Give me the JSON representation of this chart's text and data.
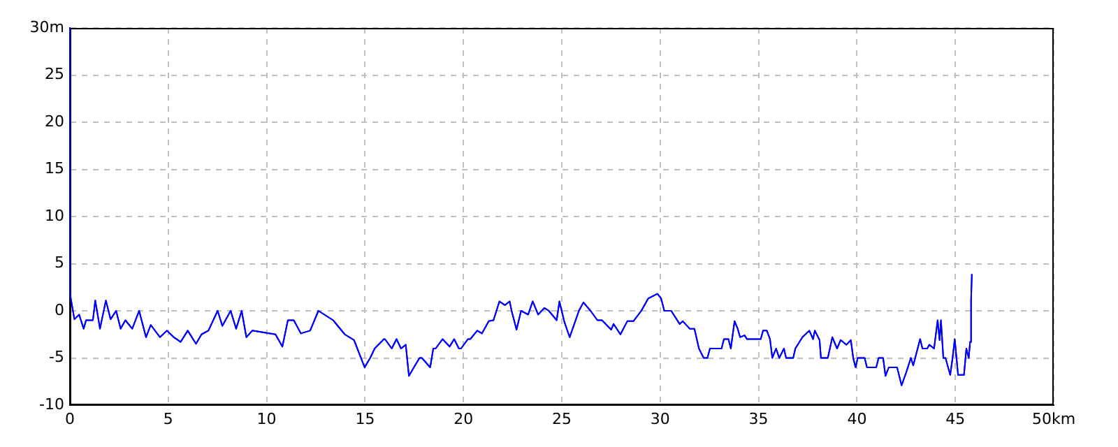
{
  "chart_data": {
    "type": "line",
    "xlim": [
      0,
      50
    ],
    "ylim": [
      -10,
      30
    ],
    "xticks": [
      0,
      5,
      10,
      15,
      20,
      25,
      30,
      35,
      40,
      45,
      {
        "value": 50,
        "label": "50km"
      }
    ],
    "yticks": [
      -10,
      -5,
      0,
      5,
      10,
      15,
      20,
      25,
      {
        "value": 30,
        "label": "30m"
      }
    ],
    "grid": true,
    "line_style": "solid",
    "marker": "none",
    "series": [
      {
        "color": "#0000ff",
        "x": [
          0,
          0,
          0.23,
          0.47,
          0.7,
          0.82,
          1.17,
          1.29,
          1.53,
          1.83,
          2.07,
          2.35,
          2.58,
          2.82,
          3.17,
          3.52,
          3.87,
          4.11,
          4.58,
          4.93,
          5.28,
          5.63,
          5.99,
          6.41,
          6.69,
          7.04,
          7.51,
          7.75,
          8.17,
          8.45,
          8.73,
          8.97,
          9.27,
          10.45,
          10.8,
          11.08,
          11.38,
          11.74,
          12.21,
          12.63,
          13.38,
          13.97,
          14.44,
          14.98,
          15.26,
          15.49,
          15.96,
          16.01,
          16.36,
          16.6,
          16.83,
          17.07,
          17.23,
          17.54,
          17.77,
          17.89,
          18.31,
          18.47,
          18.59,
          18.94,
          19.3,
          19.53,
          19.77,
          19.88,
          20.23,
          20.35,
          20.7,
          20.94,
          21.29,
          21.53,
          21.83,
          22.11,
          22.35,
          22.46,
          22.7,
          22.93,
          23.29,
          23.52,
          23.8,
          24.11,
          24.34,
          24.74,
          24.88,
          25.12,
          25.4,
          25.87,
          26.1,
          26.46,
          26.81,
          27.04,
          27.51,
          27.63,
          27.98,
          28.33,
          28.64,
          29.04,
          29.39,
          29.86,
          30.05,
          30.21,
          30.56,
          30.99,
          31.15,
          31.5,
          31.74,
          31.97,
          32.21,
          32.4,
          32.53,
          33.12,
          33.24,
          33.47,
          33.59,
          33.78,
          33.94,
          34.06,
          34.29,
          34.41,
          35.11,
          35.23,
          35.42,
          35.58,
          35.7,
          35.89,
          36.05,
          36.29,
          36.4,
          36.76,
          36.87,
          37.23,
          37.58,
          37.77,
          37.86,
          38.1,
          38.17,
          38.52,
          38.75,
          38.99,
          39.17,
          39.46,
          39.69,
          39.81,
          39.93,
          40.04,
          40.39,
          40.51,
          40.98,
          41.1,
          41.33,
          41.45,
          41.62,
          42.04,
          42.27,
          42.51,
          42.74,
          42.86,
          43.21,
          43.33,
          43.57,
          43.68,
          43.92,
          44.1,
          44.2,
          44.27,
          44.39,
          44.5,
          44.74,
          44.86,
          44.97,
          45.14,
          45.44,
          45.56,
          45.68,
          45.75,
          45.8,
          45.84
        ],
        "values": [
          30,
          1.9,
          -0.9,
          -0.4,
          -1.9,
          -1,
          -1,
          1.1,
          -1.9,
          1.1,
          -0.9,
          0,
          -1.9,
          -1,
          -1.9,
          0,
          -2.8,
          -1.5,
          -2.8,
          -2.1,
          -2.8,
          -3.3,
          -2.1,
          -3.5,
          -2.5,
          -2.1,
          0,
          -1.6,
          0,
          -1.9,
          0,
          -2.8,
          -2.1,
          -2.5,
          -3.8,
          -1,
          -1,
          -2.4,
          -2.1,
          0,
          -1,
          -2.5,
          -3.1,
          -6,
          -5,
          -4,
          -3,
          -3,
          -4,
          -3,
          -4,
          -3.6,
          -6.9,
          -5.8,
          -5,
          -5,
          -6,
          -4,
          -4,
          -3,
          -3.8,
          -3,
          -4,
          -4,
          -3,
          -3,
          -2.1,
          -2.4,
          -1.1,
          -1,
          1,
          0.6,
          1,
          -0.1,
          -2,
          0,
          -0.4,
          1,
          -0.4,
          0.3,
          0,
          -1,
          1,
          -1.1,
          -2.8,
          0,
          0.9,
          0,
          -1,
          -1,
          -2,
          -1.4,
          -2.5,
          -1.1,
          -1.1,
          0,
          1.3,
          1.8,
          1.3,
          0,
          0,
          -1.4,
          -1.1,
          -1.9,
          -1.9,
          -4,
          -5,
          -5,
          -4,
          -4,
          -3,
          -3,
          -4,
          -1.1,
          -1.9,
          -2.8,
          -2.6,
          -3,
          -3,
          -2.1,
          -2.1,
          -3,
          -5,
          -4,
          -5,
          -4,
          -5,
          -5,
          -4,
          -2.8,
          -2.1,
          -3,
          -2.1,
          -3.1,
          -5,
          -5,
          -2.8,
          -4,
          -3.1,
          -3.6,
          -3.1,
          -5,
          -6,
          -5,
          -5,
          -6,
          -6,
          -5,
          -5,
          -6.9,
          -6,
          -6,
          -7.9,
          -6.5,
          -5,
          -5.8,
          -3,
          -4,
          -4,
          -3.6,
          -4,
          -1,
          -3.1,
          -1,
          -5,
          -5,
          -6.8,
          -5,
          -3,
          -6.8,
          -6.8,
          -4,
          -5,
          -3.3,
          1.1,
          3.9
        ]
      }
    ]
  }
}
